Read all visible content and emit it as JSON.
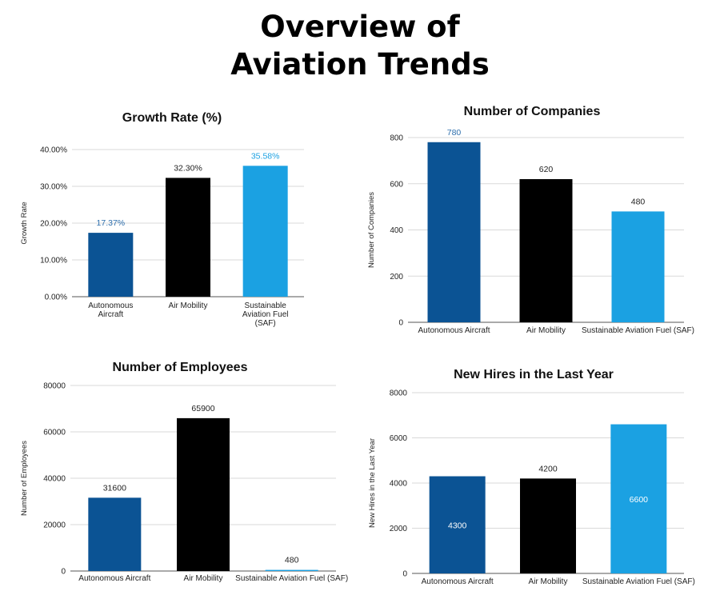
{
  "page": {
    "title_line1": "Overview of",
    "title_line2": "Aviation Trends"
  },
  "colors": {
    "dark_blue": "#0b5394",
    "black": "#000000",
    "light_blue": "#1ba1e2",
    "grid": "#d9d9d9",
    "axis": "#555555"
  },
  "chart_data": [
    {
      "id": "growth",
      "type": "bar",
      "title": "Growth Rate (%)",
      "xlabel": "",
      "ylabel": "Growth Rate",
      "categories": [
        [
          "Autonomous",
          "Aircraft"
        ],
        [
          "Air Mobility"
        ],
        [
          "Sustainable",
          "Aviation Fuel",
          "(SAF)"
        ]
      ],
      "values": [
        17.37,
        32.3,
        35.58
      ],
      "data_labels": [
        "17.37%",
        "32.30%",
        "35.58%"
      ],
      "label_position": "above",
      "label_colors": [
        "#2e6fad",
        "#222222",
        "#1ba1e2"
      ],
      "yticks": [
        0,
        10,
        20,
        30,
        40
      ],
      "ytick_labels": [
        "0.00%",
        "10.00%",
        "20.00%",
        "30.00%",
        "40.00%"
      ],
      "ylim": [
        0,
        40
      ],
      "grid": true,
      "bar_colors": [
        "#0b5394",
        "#000000",
        "#1ba1e2"
      ]
    },
    {
      "id": "companies",
      "type": "bar",
      "title": "Number of Companies",
      "xlabel": "",
      "ylabel": "Number of Companies",
      "categories": [
        [
          "Autonomous Aircraft"
        ],
        [
          "Air Mobility"
        ],
        [
          "Sustainable Aviation Fuel (SAF)"
        ]
      ],
      "values": [
        780,
        620,
        480
      ],
      "data_labels": [
        "780",
        "620",
        "480"
      ],
      "label_position": "above",
      "label_colors": [
        "#2e6fad",
        "#222222",
        "#222222"
      ],
      "yticks": [
        0,
        200,
        400,
        600,
        800
      ],
      "ytick_labels": [
        "0",
        "200",
        "400",
        "600",
        "800"
      ],
      "ylim": [
        0,
        800
      ],
      "grid": true,
      "bar_colors": [
        "#0b5394",
        "#000000",
        "#1ba1e2"
      ]
    },
    {
      "id": "employees",
      "type": "bar",
      "title": "Number of Employees",
      "xlabel": "",
      "ylabel": "Number of Employees",
      "categories": [
        [
          "Autonomous Aircraft"
        ],
        [
          "Air Mobility"
        ],
        [
          "Sustainable Aviation Fuel (SAF)"
        ]
      ],
      "values": [
        31600,
        65900,
        480
      ],
      "data_labels": [
        "31600",
        "65900",
        "480"
      ],
      "label_position": "above",
      "label_colors": [
        "#222222",
        "#222222",
        "#222222"
      ],
      "yticks": [
        0,
        20000,
        40000,
        60000,
        80000
      ],
      "ytick_labels": [
        "0",
        "20000",
        "40000",
        "60000",
        "80000"
      ],
      "ylim": [
        0,
        80000
      ],
      "grid": true,
      "bar_colors": [
        "#0b5394",
        "#000000",
        "#1ba1e2"
      ]
    },
    {
      "id": "hires",
      "type": "bar",
      "title": "New Hires in the Last Year",
      "xlabel": "",
      "ylabel": "New Hires in the Last Year",
      "categories": [
        [
          "Autonomous Aircraft"
        ],
        [
          "Air Mobility"
        ],
        [
          "Sustainable Aviation Fuel (SAF)"
        ]
      ],
      "values": [
        4300,
        4200,
        6600
      ],
      "data_labels": [
        "4300",
        "4200",
        "6600"
      ],
      "label_position": "mixed",
      "label_placements": [
        "inside",
        "above",
        "inside"
      ],
      "label_colors": [
        "#ffffff",
        "#222222",
        "#ffffff"
      ],
      "yticks": [
        0,
        2000,
        4000,
        6000,
        8000
      ],
      "ytick_labels": [
        "0",
        "2000",
        "4000",
        "6000",
        "8000"
      ],
      "ylim": [
        0,
        8000
      ],
      "grid": true,
      "bar_colors": [
        "#0b5394",
        "#000000",
        "#1ba1e2"
      ]
    }
  ]
}
